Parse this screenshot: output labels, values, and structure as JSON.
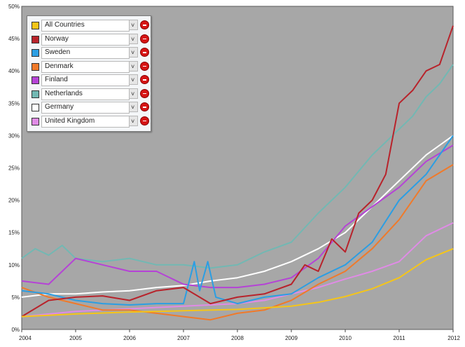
{
  "chart_data": {
    "type": "line",
    "title": "",
    "xlabel": "",
    "ylabel": "",
    "xlim": [
      2004,
      2012
    ],
    "ylim": [
      0,
      50
    ],
    "x_ticks": [
      "2004",
      "2005",
      "2006",
      "2007",
      "2008",
      "2009",
      "2010",
      "2011",
      "2012"
    ],
    "y_ticks": [
      "0%",
      "5%",
      "10%",
      "15%",
      "20%",
      "25%",
      "30%",
      "35%",
      "40%",
      "45%",
      "50%"
    ],
    "grid": false,
    "legend_position": "top-left",
    "series": [
      {
        "name": "All Countries",
        "color": "#f5c518",
        "x": [
          2004,
          2005,
          2006,
          2007,
          2008,
          2009,
          2009.5,
          2010,
          2010.5,
          2011,
          2011.5,
          2012
        ],
        "y": [
          2.0,
          2.4,
          2.7,
          2.9,
          3.1,
          3.6,
          4.2,
          5.1,
          6.3,
          8.0,
          10.8,
          12.5
        ]
      },
      {
        "name": "Norway",
        "color": "#b8232b",
        "x": [
          2004,
          2004.5,
          2005,
          2005.5,
          2006,
          2006.5,
          2007,
          2007.5,
          2008,
          2008.5,
          2009,
          2009.25,
          2009.5,
          2009.75,
          2010,
          2010.25,
          2010.5,
          2010.75,
          2011,
          2011.25,
          2011.5,
          2011.75,
          2012
        ],
        "y": [
          2.0,
          4.5,
          5.0,
          5.2,
          4.5,
          6.0,
          6.5,
          4.0,
          5.0,
          5.5,
          7.0,
          10.0,
          9.0,
          14.0,
          12.0,
          18.0,
          20.0,
          24.0,
          35.0,
          37.0,
          40.0,
          41.0,
          47.0
        ]
      },
      {
        "name": "Sweden",
        "color": "#2b9ee3",
        "x": [
          2004,
          2004.5,
          2005,
          2005.5,
          2006,
          2006.5,
          2007,
          2007.2,
          2007.3,
          2007.45,
          2007.6,
          2008,
          2008.5,
          2009,
          2009.5,
          2010,
          2010.5,
          2011,
          2011.5,
          2012
        ],
        "y": [
          6.0,
          5.5,
          4.5,
          4.0,
          3.8,
          4.0,
          4.0,
          10.5,
          6.0,
          10.5,
          5.0,
          4.0,
          5.0,
          5.5,
          8.0,
          10.0,
          13.5,
          20.0,
          24.0,
          30.0
        ]
      },
      {
        "name": "Denmark",
        "color": "#f07a2a",
        "x": [
          2004,
          2004.5,
          2005,
          2005.5,
          2006,
          2006.5,
          2007,
          2007.5,
          2008,
          2008.5,
          2009,
          2009.5,
          2010,
          2010.5,
          2011,
          2011.5,
          2012
        ],
        "y": [
          6.5,
          5.0,
          4.0,
          3.0,
          3.0,
          2.5,
          2.0,
          1.5,
          2.5,
          3.0,
          4.5,
          7.0,
          9.0,
          12.5,
          17.0,
          23.0,
          25.5
        ]
      },
      {
        "name": "Finland",
        "color": "#b543d6",
        "x": [
          2004,
          2004.5,
          2005,
          2005.5,
          2006,
          2006.5,
          2007,
          2007.5,
          2008,
          2008.5,
          2009,
          2009.5,
          2010,
          2010.5,
          2011,
          2011.5,
          2012
        ],
        "y": [
          7.5,
          7.0,
          11.0,
          10.0,
          9.0,
          9.0,
          7.0,
          6.5,
          6.5,
          7.0,
          8.0,
          11.0,
          16.0,
          19.0,
          22.0,
          26.0,
          28.5
        ]
      },
      {
        "name": "Netherlands",
        "color": "#72b8b3",
        "x": [
          2004,
          2004.25,
          2004.5,
          2004.75,
          2005,
          2005.5,
          2006,
          2006.5,
          2007,
          2007.5,
          2008,
          2008.5,
          2009,
          2009.5,
          2010,
          2010.5,
          2011,
          2011.25,
          2011.5,
          2011.75,
          2012
        ],
        "y": [
          11.0,
          12.5,
          11.5,
          13.0,
          11.0,
          10.5,
          11.0,
          10.0,
          10.0,
          9.5,
          10.0,
          12.0,
          13.5,
          18.0,
          22.0,
          27.0,
          31.0,
          33.0,
          36.0,
          38.0,
          41.0
        ]
      },
      {
        "name": "Germany",
        "color": "#ffffff",
        "x": [
          2004,
          2004.5,
          2005,
          2005.5,
          2006,
          2006.5,
          2007,
          2007.5,
          2008,
          2008.5,
          2009,
          2009.5,
          2010,
          2010.5,
          2011,
          2011.5,
          2012
        ],
        "y": [
          5.0,
          5.5,
          5.5,
          5.8,
          6.0,
          6.5,
          6.8,
          7.5,
          8.0,
          9.0,
          10.5,
          12.5,
          15.0,
          19.0,
          23.0,
          27.0,
          30.0
        ]
      },
      {
        "name": "United Kingdom",
        "color": "#e08be6",
        "x": [
          2004,
          2005,
          2006,
          2007,
          2008,
          2008.5,
          2009,
          2009.5,
          2010,
          2010.5,
          2011,
          2011.5,
          2012
        ],
        "y": [
          2.0,
          2.8,
          3.2,
          3.6,
          4.0,
          4.5,
          5.5,
          6.5,
          7.8,
          9.0,
          10.5,
          14.5,
          16.5
        ]
      }
    ]
  }
}
